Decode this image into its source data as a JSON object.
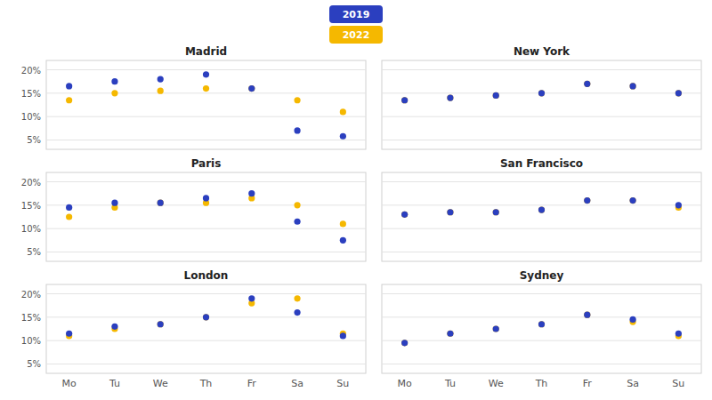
{
  "chart_data": [
    {
      "type": "scatter",
      "title": "Madrid",
      "legend": "top",
      "grid": true,
      "tick_labels": "y",
      "categories": [
        "Mo",
        "Tu",
        "We",
        "Th",
        "Fr",
        "Sa",
        "Su"
      ],
      "series": [
        {
          "name": "2019",
          "color": "#2B3FBF",
          "values": [
            16.5,
            17.5,
            18.0,
            19.0,
            16.0,
            7.0,
            5.8
          ]
        },
        {
          "name": "2022",
          "color": "#F5B800",
          "values": [
            13.5,
            15.0,
            15.5,
            16.0,
            16.0,
            13.5,
            11.0
          ]
        }
      ],
      "ylim": [
        3,
        22
      ],
      "yticks": [
        {
          "value": 5,
          "label": "5%"
        },
        {
          "value": 10,
          "label": "10%"
        },
        {
          "value": 15,
          "label": "15%"
        },
        {
          "value": 20,
          "label": "20%"
        }
      ]
    },
    {
      "type": "scatter",
      "title": "New York",
      "grid": true,
      "tick_labels": false,
      "categories": [
        "Mo",
        "Tu",
        "We",
        "Th",
        "Fr",
        "Sa",
        "Su"
      ],
      "series": [
        {
          "name": "2019",
          "color": "#2B3FBF",
          "values": [
            13.5,
            14.0,
            14.5,
            15.0,
            17.0,
            16.5,
            15.0
          ]
        },
        {
          "name": "2022",
          "color": "#F5B800",
          "values": [
            13.5,
            14.0,
            14.5,
            15.0,
            17.0,
            16.5,
            15.0
          ]
        }
      ],
      "ylim": [
        3,
        22
      ],
      "yticks": [
        {
          "value": 5,
          "label": "5%"
        },
        {
          "value": 10,
          "label": "10%"
        },
        {
          "value": 15,
          "label": "15%"
        },
        {
          "value": 20,
          "label": "20%"
        }
      ]
    },
    {
      "type": "scatter",
      "title": "Paris",
      "grid": true,
      "tick_labels": "y",
      "categories": [
        "Mo",
        "Tu",
        "We",
        "Th",
        "Fr",
        "Sa",
        "Su"
      ],
      "series": [
        {
          "name": "2019",
          "color": "#2B3FBF",
          "values": [
            14.5,
            15.5,
            15.5,
            16.5,
            17.5,
            11.5,
            7.5
          ]
        },
        {
          "name": "2022",
          "color": "#F5B800",
          "values": [
            12.5,
            14.5,
            15.5,
            15.5,
            16.5,
            15.0,
            11.0
          ]
        }
      ],
      "ylim": [
        3,
        22
      ],
      "yticks": [
        {
          "value": 5,
          "label": "5%"
        },
        {
          "value": 10,
          "label": "10%"
        },
        {
          "value": 15,
          "label": "15%"
        },
        {
          "value": 20,
          "label": "20%"
        }
      ]
    },
    {
      "type": "scatter",
      "title": "San Francisco",
      "grid": true,
      "tick_labels": false,
      "categories": [
        "Mo",
        "Tu",
        "We",
        "Th",
        "Fr",
        "Sa",
        "Su"
      ],
      "series": [
        {
          "name": "2019",
          "color": "#2B3FBF",
          "values": [
            13.0,
            13.5,
            13.5,
            14.0,
            16.0,
            16.0,
            15.0
          ]
        },
        {
          "name": "2022",
          "color": "#F5B800",
          "values": [
            13.0,
            13.5,
            13.5,
            14.0,
            16.0,
            16.0,
            14.5
          ]
        }
      ],
      "ylim": [
        3,
        22
      ],
      "yticks": [
        {
          "value": 5,
          "label": "5%"
        },
        {
          "value": 10,
          "label": "10%"
        },
        {
          "value": 15,
          "label": "15%"
        },
        {
          "value": 20,
          "label": "20%"
        }
      ]
    },
    {
      "type": "scatter",
      "title": "London",
      "grid": true,
      "categories": [
        "Mo",
        "Tu",
        "We",
        "Th",
        "Fr",
        "Sa",
        "Su"
      ],
      "series": [
        {
          "name": "2019",
          "color": "#2B3FBF",
          "values": [
            11.5,
            13.0,
            13.5,
            15.0,
            19.0,
            16.0,
            11.0
          ]
        },
        {
          "name": "2022",
          "color": "#F5B800",
          "values": [
            11.0,
            12.5,
            13.5,
            15.0,
            18.0,
            19.0,
            11.5
          ]
        }
      ],
      "ylim": [
        3,
        22
      ],
      "yticks": [
        {
          "value": 5,
          "label": "5%"
        },
        {
          "value": 10,
          "label": "10%"
        },
        {
          "value": 15,
          "label": "15%"
        },
        {
          "value": 20,
          "label": "20%"
        }
      ]
    },
    {
      "type": "scatter",
      "title": "Sydney",
      "grid": true,
      "tick_labels": "x",
      "categories": [
        "Mo",
        "Tu",
        "We",
        "Th",
        "Fr",
        "Sa",
        "Su"
      ],
      "series": [
        {
          "name": "2019",
          "color": "#2B3FBF",
          "values": [
            9.5,
            11.5,
            12.5,
            13.5,
            15.5,
            14.5,
            11.5
          ]
        },
        {
          "name": "2022",
          "color": "#F5B800",
          "values": [
            9.5,
            11.5,
            12.5,
            13.5,
            15.5,
            14.0,
            11.0
          ]
        }
      ],
      "ylim": [
        3,
        22
      ],
      "yticks": [
        {
          "value": 5,
          "label": "5%"
        },
        {
          "value": 10,
          "label": "10%"
        },
        {
          "value": 15,
          "label": "15%"
        },
        {
          "value": 20,
          "label": "20%"
        }
      ]
    }
  ]
}
